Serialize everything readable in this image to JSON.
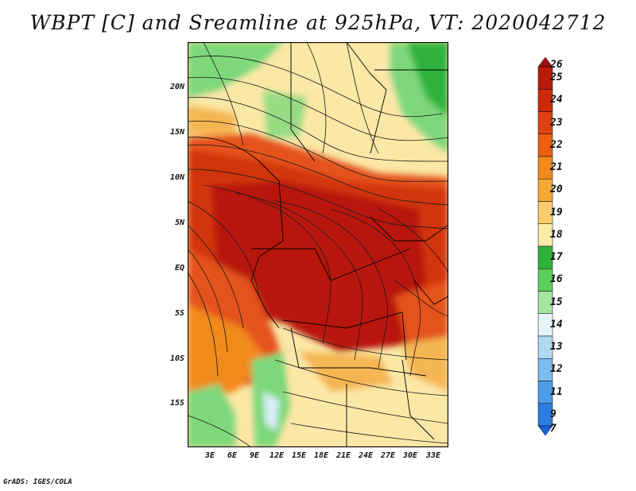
{
  "title": "WBPT [C] and Sreamline at 925hPa, VT: 2020042712",
  "footer": "GrADS: IGES/COLA",
  "lat_labels": [
    "20N",
    "15N",
    "10N",
    "5N",
    "EQ",
    "5S",
    "10S",
    "15S"
  ],
  "lon_labels": [
    "3E",
    "6E",
    "9E",
    "12E",
    "15E",
    "18E",
    "21E",
    "24E",
    "27E",
    "30E",
    "33E"
  ],
  "colorbar": {
    "labels": [
      "26",
      "25",
      "24",
      "23",
      "22",
      "21",
      "20",
      "19",
      "18",
      "17",
      "16",
      "15",
      "14",
      "13",
      "12",
      "11",
      "9",
      "7"
    ],
    "colors": [
      "#a01010",
      "#b81a08",
      "#cc2a08",
      "#de4210",
      "#ec6010",
      "#f28a1c",
      "#f6aa34",
      "#f9cd6e",
      "#faeaa8",
      "#2fb23c",
      "#5ad05a",
      "#a6e6a0",
      "#e6f6f8",
      "#b0d8f0",
      "#7cbcee",
      "#4c9ce8",
      "#2c7ee0",
      "#1c62d6"
    ]
  },
  "field_colors": {
    "dark_red": "#b8180a",
    "red": "#d2360a",
    "orange_red": "#e4521a",
    "orange": "#f28a1c",
    "light_orange": "#f6b552",
    "pale_yellow": "#fbe7a6",
    "green": "#2fb23c",
    "light_green": "#7ed87a",
    "pale_blue": "#d8eef8"
  }
}
